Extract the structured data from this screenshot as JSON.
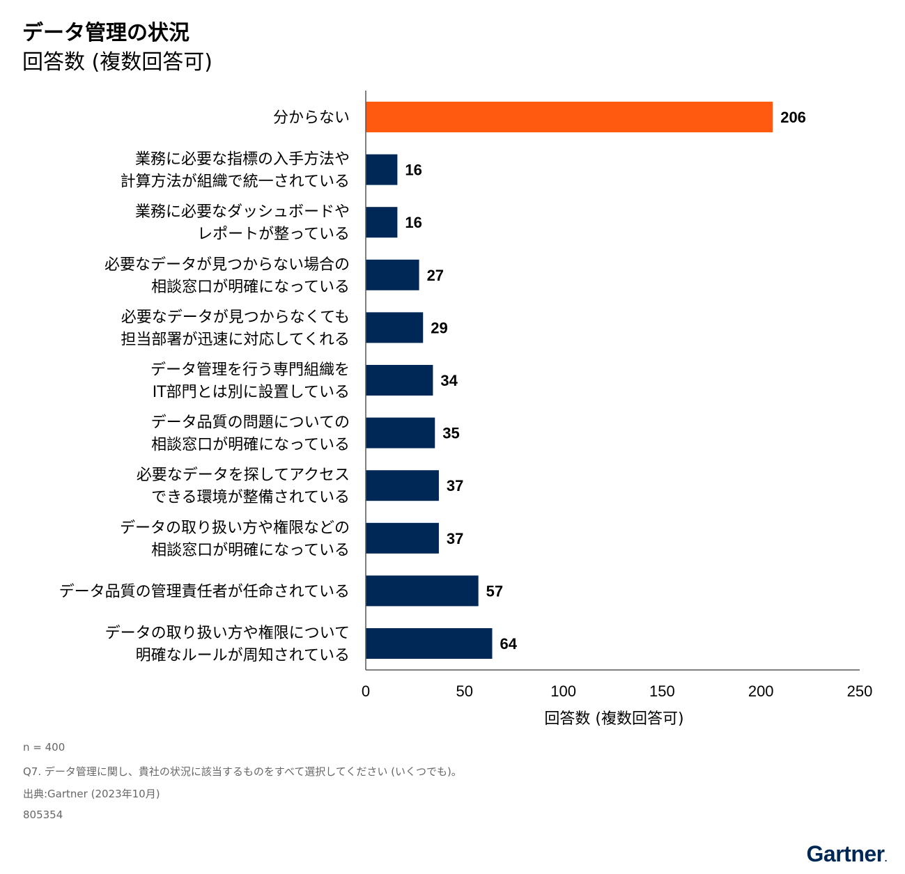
{
  "header": {
    "title": "データ管理の状況",
    "subtitle": "回答数 (複数回答可)"
  },
  "chart_data": {
    "type": "bar",
    "orientation": "horizontal",
    "title": "データ管理の状況",
    "subtitle": "回答数 (複数回答可)",
    "xlabel": "回答数 (複数回答可)",
    "ylabel": "",
    "xlim": [
      0,
      250
    ],
    "ticks": [
      0,
      50,
      100,
      150,
      200,
      250
    ],
    "grid": false,
    "categories": [
      [
        "分からない"
      ],
      [
        "業務に必要な指標の入手方法や",
        "計算方法が組織で統一されている"
      ],
      [
        "業務に必要なダッシュボードや",
        "レポートが整っている"
      ],
      [
        "必要なデータが見つからない場合の",
        "相談窓口が明確になっている"
      ],
      [
        "必要なデータが見つからなくても",
        "担当部署が迅速に対応してくれる"
      ],
      [
        "データ管理を行う専門組織を",
        "IT部門とは別に設置している"
      ],
      [
        "データ品質の問題についての",
        "相談窓口が明確になっている"
      ],
      [
        "必要なデータを探してアクセス",
        "できる環境が整備されている"
      ],
      [
        "データの取り扱い方や権限などの",
        "相談窓口が明確になっている"
      ],
      [
        "データ品質の管理責任者が任命されている"
      ],
      [
        "データの取り扱い方や権限について",
        "明確なルールが周知されている"
      ]
    ],
    "values": [
      206,
      16,
      16,
      27,
      29,
      34,
      35,
      37,
      37,
      57,
      64
    ],
    "highlight_index": 0,
    "colors": {
      "highlight": "#FF5A0F",
      "default": "#002856"
    }
  },
  "notes": {
    "n": "n = 400",
    "question": "Q7. データ管理に関し、貴社の状況に該当するものをすべて選択してください (いくつでも)。",
    "source": "出典:Gartner (2023年10月)",
    "id": "805354"
  },
  "logo": {
    "text": "Gartner",
    "mark": "."
  }
}
